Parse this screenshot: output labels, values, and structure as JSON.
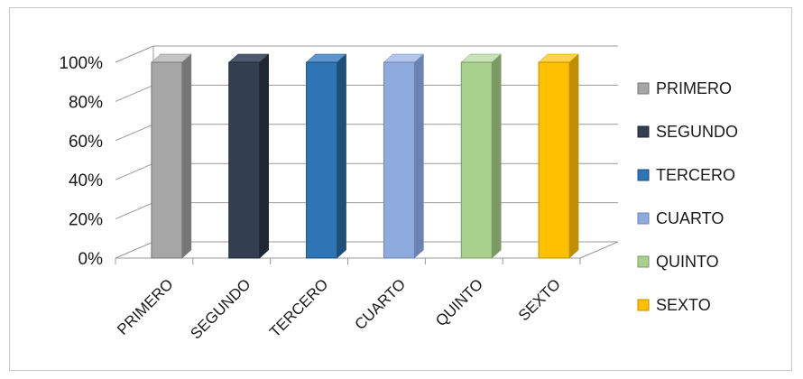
{
  "chart_data": {
    "type": "bar",
    "style": "3d-column",
    "categories": [
      "PRIMERO",
      "SEGUNDO",
      "TERCERO",
      "CUARTO",
      "QUINTO",
      "SEXTO"
    ],
    "values": [
      1.0,
      1.0,
      1.0,
      1.0,
      1.0,
      1.0
    ],
    "ylim": [
      0,
      1
    ],
    "yticks": [
      "0%",
      "20%",
      "40%",
      "60%",
      "80%",
      "100%"
    ],
    "grid": true,
    "legend_position": "right",
    "legend": [
      "PRIMERO",
      "SEGUNDO",
      "TERCERO",
      "CUARTO",
      "QUINTO",
      "SEXTO"
    ],
    "colors": [
      "#a6a6a6",
      "#333f50",
      "#2e75b6",
      "#8faadc",
      "#a9d18e",
      "#ffc000"
    ],
    "side_colors": [
      "#767676",
      "#1f2734",
      "#1f4e79",
      "#6b83b3",
      "#7b9a66",
      "#bf8f00"
    ],
    "top_colors": [
      "#c4c4c4",
      "#4d5a6e",
      "#5b95cc",
      "#b3c6e8",
      "#c7e2b4",
      "#ffd34d"
    ]
  }
}
